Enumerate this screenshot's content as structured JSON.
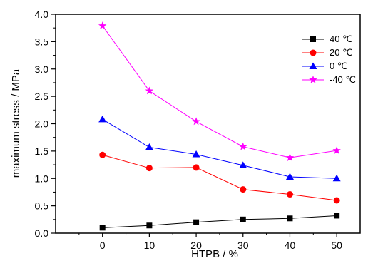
{
  "chart_data": {
    "type": "line",
    "xlabel": "HTPB / %",
    "ylabel": "maximum stress / MPa",
    "x": [
      0,
      10,
      20,
      30,
      40,
      50
    ],
    "xlim": [
      -10,
      55
    ],
    "ylim": [
      0,
      4.0
    ],
    "xticks": [
      "0",
      "10",
      "20",
      "30",
      "40",
      "50"
    ],
    "yticks": [
      "0.0",
      "0.5",
      "1.0",
      "1.5",
      "2.0",
      "2.5",
      "3.0",
      "3.5",
      "4.0"
    ],
    "grid": false,
    "legend_position": "top-right",
    "series": [
      {
        "name": "40 ℃",
        "color": "#000000",
        "marker": "square",
        "values": [
          0.1,
          0.14,
          0.2,
          0.25,
          0.27,
          0.32
        ]
      },
      {
        "name": "20 ℃",
        "color": "#ff0000",
        "marker": "circle",
        "values": [
          1.43,
          1.19,
          1.2,
          0.8,
          0.71,
          0.6
        ]
      },
      {
        "name": "0 ℃",
        "color": "#0000ff",
        "marker": "triangle",
        "values": [
          2.08,
          1.57,
          1.44,
          1.24,
          1.03,
          1.0
        ]
      },
      {
        "name": "-40 ℃",
        "color": "#ff00ff",
        "marker": "star",
        "values": [
          3.79,
          2.6,
          2.04,
          1.58,
          1.38,
          1.51
        ]
      }
    ]
  }
}
